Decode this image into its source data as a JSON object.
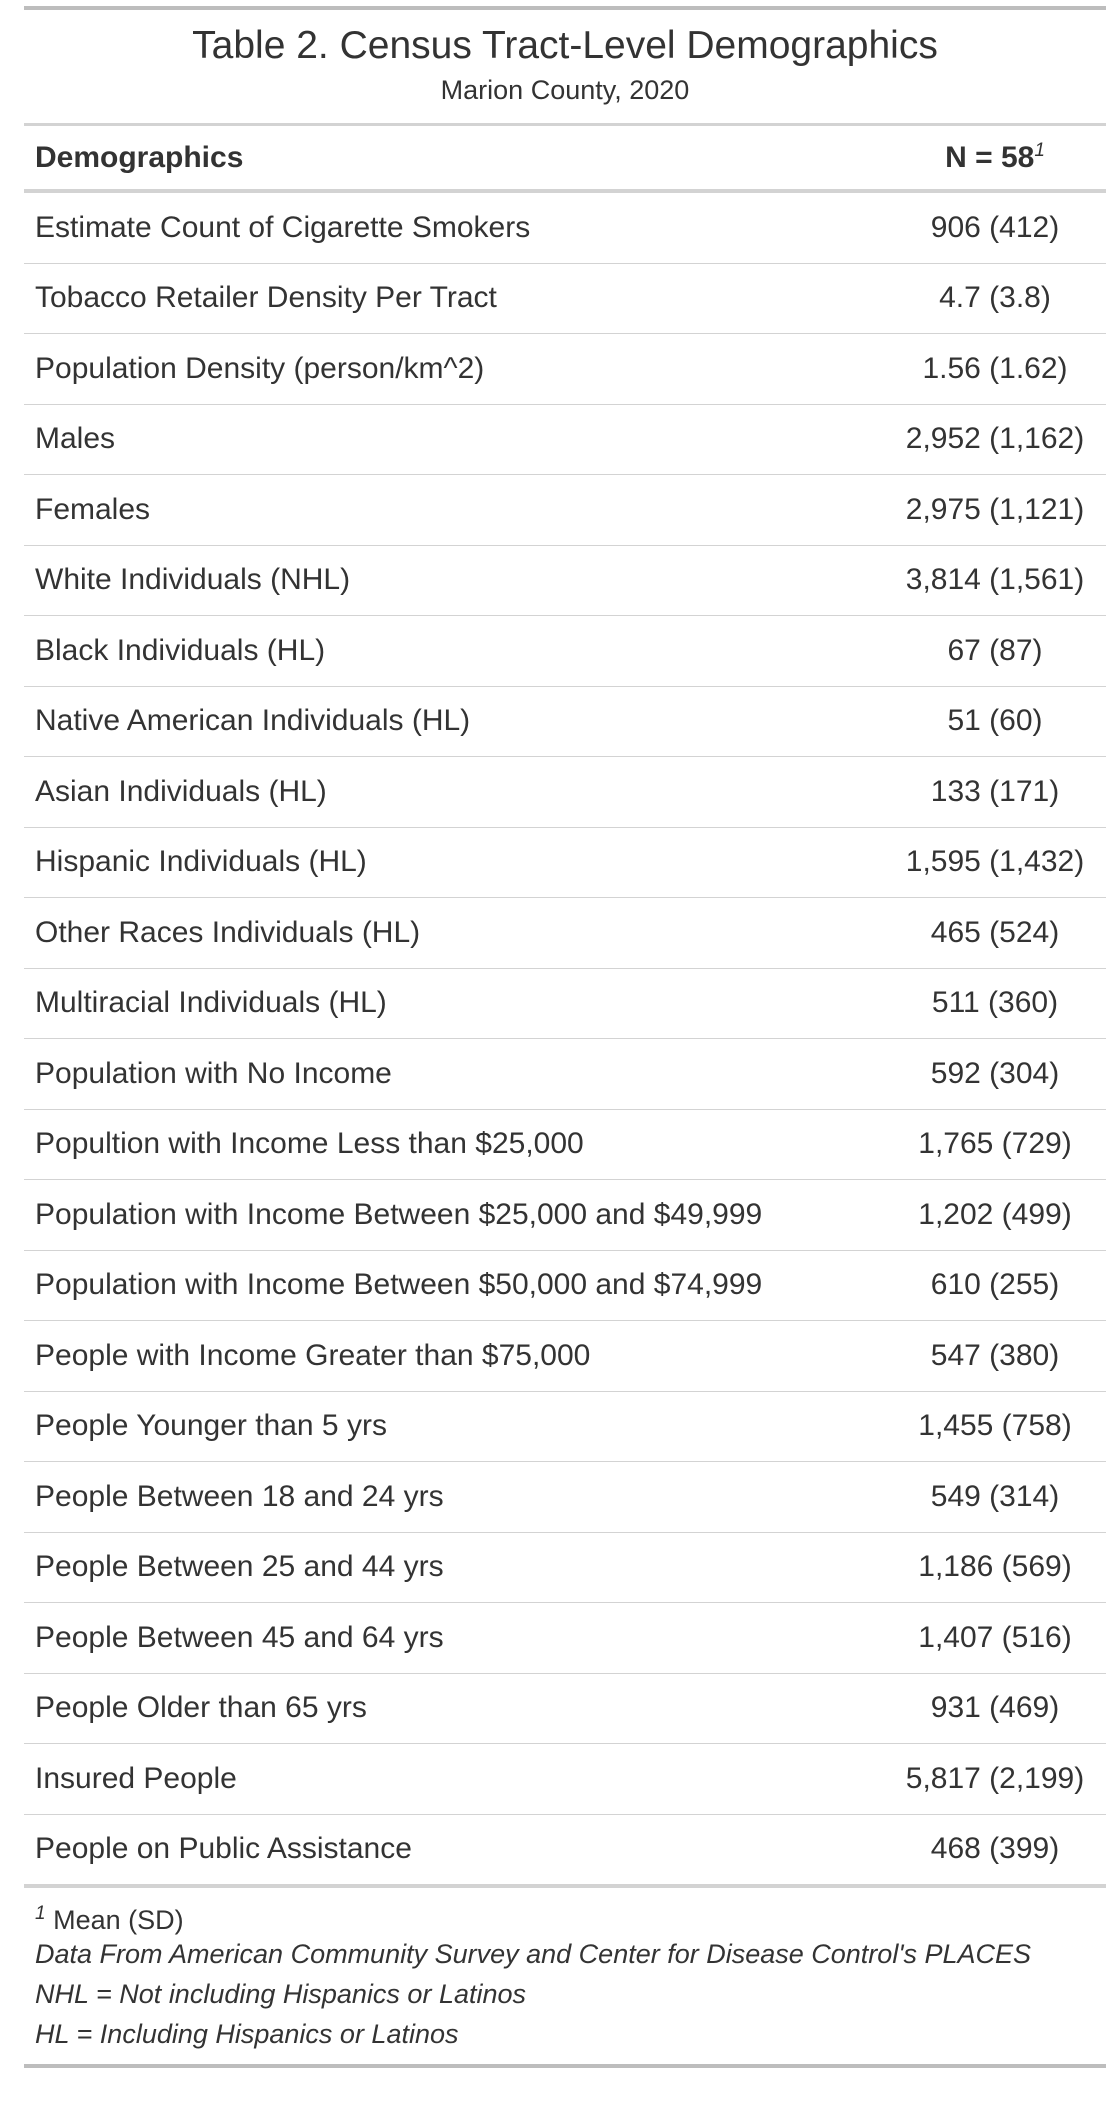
{
  "title": "Table 2. Census Tract-Level Demographics",
  "subtitle": "Marion County, 2020",
  "header": {
    "label": "Demographics",
    "value": "N = 58",
    "value_sup": "1"
  },
  "rows": [
    {
      "label": "Estimate Count of Cigarette Smokers",
      "value": "906 (412)"
    },
    {
      "label": "Tobacco Retailer Density Per Tract",
      "value": "4.7 (3.8)"
    },
    {
      "label": "Population Density (person/km^2)",
      "value": "1.56 (1.62)"
    },
    {
      "label": "Males",
      "value": "2,952 (1,162)"
    },
    {
      "label": "Females",
      "value": "2,975 (1,121)"
    },
    {
      "label": "White Individuals (NHL)",
      "value": "3,814 (1,561)"
    },
    {
      "label": "Black Individuals (HL)",
      "value": "67 (87)"
    },
    {
      "label": "Native American Individuals (HL)",
      "value": "51 (60)"
    },
    {
      "label": "Asian Individuals (HL)",
      "value": "133 (171)"
    },
    {
      "label": "Hispanic Individuals (HL)",
      "value": "1,595 (1,432)"
    },
    {
      "label": "Other Races Individuals (HL)",
      "value": "465 (524)"
    },
    {
      "label": "Multiracial Individuals (HL)",
      "value": "511 (360)"
    },
    {
      "label": "Population with No Income",
      "value": "592 (304)"
    },
    {
      "label": "Popultion with Income Less than $25,000",
      "value": "1,765 (729)"
    },
    {
      "label": "Population with Income Between $25,000 and $49,999",
      "value": "1,202 (499)"
    },
    {
      "label": "Population with Income Between $50,000 and $74,999",
      "value": "610 (255)"
    },
    {
      "label": "People with Income Greater than $75,000",
      "value": "547 (380)"
    },
    {
      "label": "People Younger than 5 yrs",
      "value": "1,455 (758)"
    },
    {
      "label": "People Between 18 and 24 yrs",
      "value": "549 (314)"
    },
    {
      "label": "People Between 25 and 44 yrs",
      "value": "1,186 (569)"
    },
    {
      "label": "People Between 45 and 64 yrs",
      "value": "1,407 (516)"
    },
    {
      "label": "People Older than 65 yrs",
      "value": "931 (469)"
    },
    {
      "label": "Insured People",
      "value": "5,817 (2,199)"
    },
    {
      "label": "People on Public Assistance",
      "value": "468 (399)"
    }
  ],
  "footnotes": {
    "sup": "1",
    "mean_sd": "Mean (SD)",
    "source": "Data From American Community Survey and Center for Disease Control's PLACES",
    "nhl": "NHL = Not including Hispanics or Latinos",
    "hl": "HL = Including Hispanics or Latinos"
  }
}
